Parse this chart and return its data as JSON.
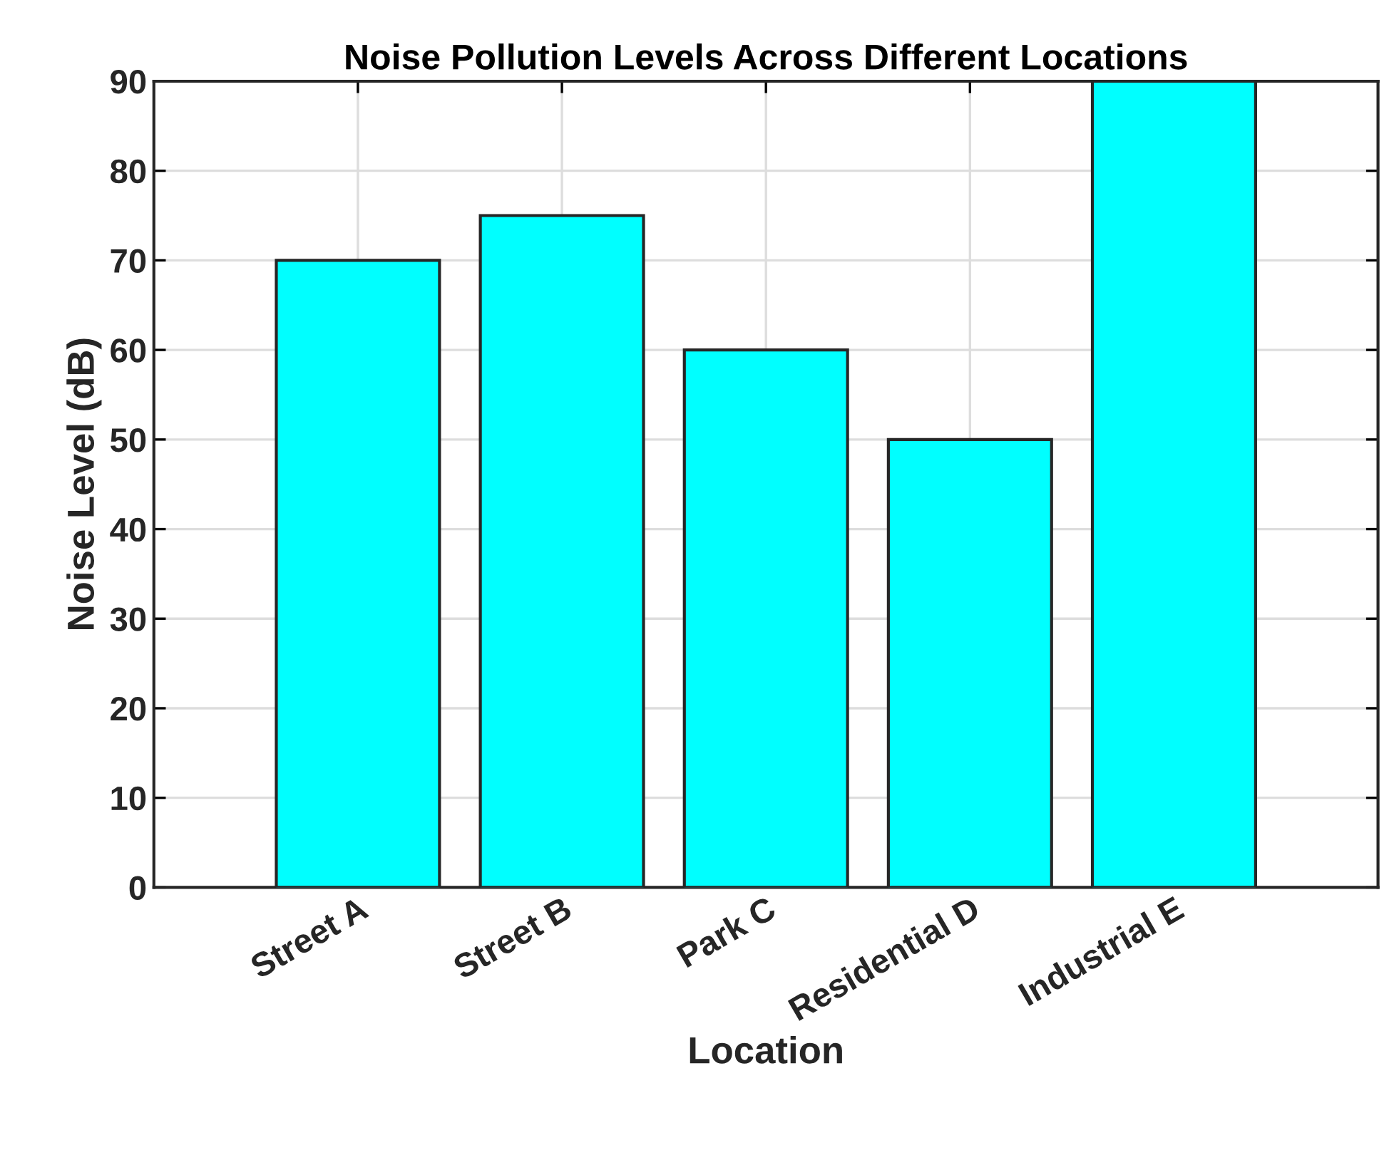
{
  "chart_data": {
    "type": "bar",
    "title": "Noise Pollution Levels Across Different Locations",
    "xlabel": "Location",
    "ylabel": "Noise Level (dB)",
    "categories": [
      "Street A",
      "Street B",
      "Park C",
      "Residential D",
      "Industrial E"
    ],
    "values": [
      70,
      75,
      60,
      50,
      90
    ],
    "color": "#00ffff",
    "ylim": [
      0,
      90
    ],
    "yticks": [
      0,
      10,
      20,
      30,
      40,
      50,
      60,
      70,
      80,
      90
    ],
    "grid": true
  }
}
